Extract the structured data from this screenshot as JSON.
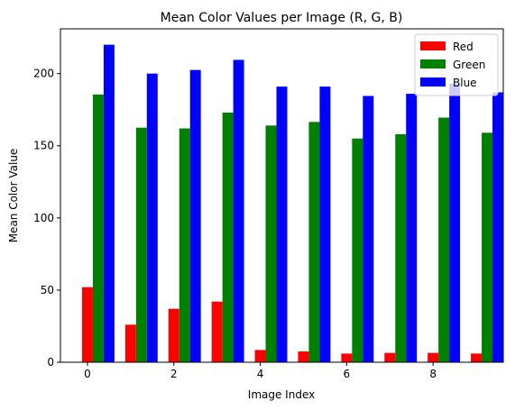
{
  "chart_data": {
    "type": "bar",
    "title": "Mean Color Values per Image (R, G, B)",
    "xlabel": "Image Index",
    "ylabel": "Mean Color Value",
    "x": [
      0,
      1,
      2,
      3,
      4,
      5,
      6,
      7,
      8,
      9
    ],
    "xticks": [
      "0",
      "2",
      "4",
      "6",
      "8"
    ],
    "yticks": [
      "0",
      "50",
      "100",
      "150",
      "200"
    ],
    "xlim": [
      -0.5,
      9.75
    ],
    "ylim": [
      0,
      231
    ],
    "grid": false,
    "legend_position": "top-right",
    "series": [
      {
        "name": "Red",
        "color": "#ff0000",
        "values": [
          52,
          26,
          37,
          42,
          8.5,
          7.5,
          6,
          6.5,
          6.5,
          6
        ]
      },
      {
        "name": "Green",
        "color": "#008000",
        "values": [
          185.5,
          162.5,
          162,
          173,
          164,
          166.5,
          155,
          158,
          169.5,
          159
        ]
      },
      {
        "name": "Blue",
        "color": "#0000ff",
        "values": [
          220,
          200,
          202.5,
          209.5,
          191,
          191,
          184.5,
          186,
          193,
          187
        ]
      }
    ]
  }
}
